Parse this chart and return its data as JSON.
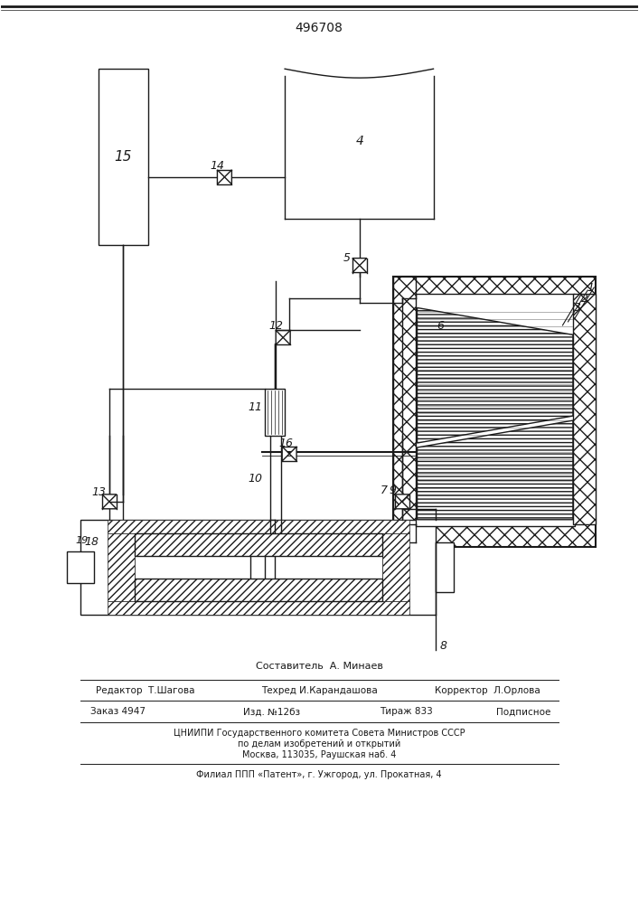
{
  "title": "496708",
  "lc": "#1a1a1a",
  "lw": 1.0,
  "footer": [
    "Составитель  А. Минаев",
    "Редактор  Т.Шагова",
    "Техред И.Карандашова",
    "Корректор  Л.Орлова",
    "Заказ 4947",
    "Изд. №12бз",
    "Тираж 833",
    "Подписное",
    "ЦНИИПИ Государственного комитета Совета Министров СССР",
    "по делам изобретений и открытий",
    "Москва, 113035, Раушская наб. 4",
    "Филиал ППП «Патент», г. Ужгород, ул. Прокатная, 4"
  ]
}
